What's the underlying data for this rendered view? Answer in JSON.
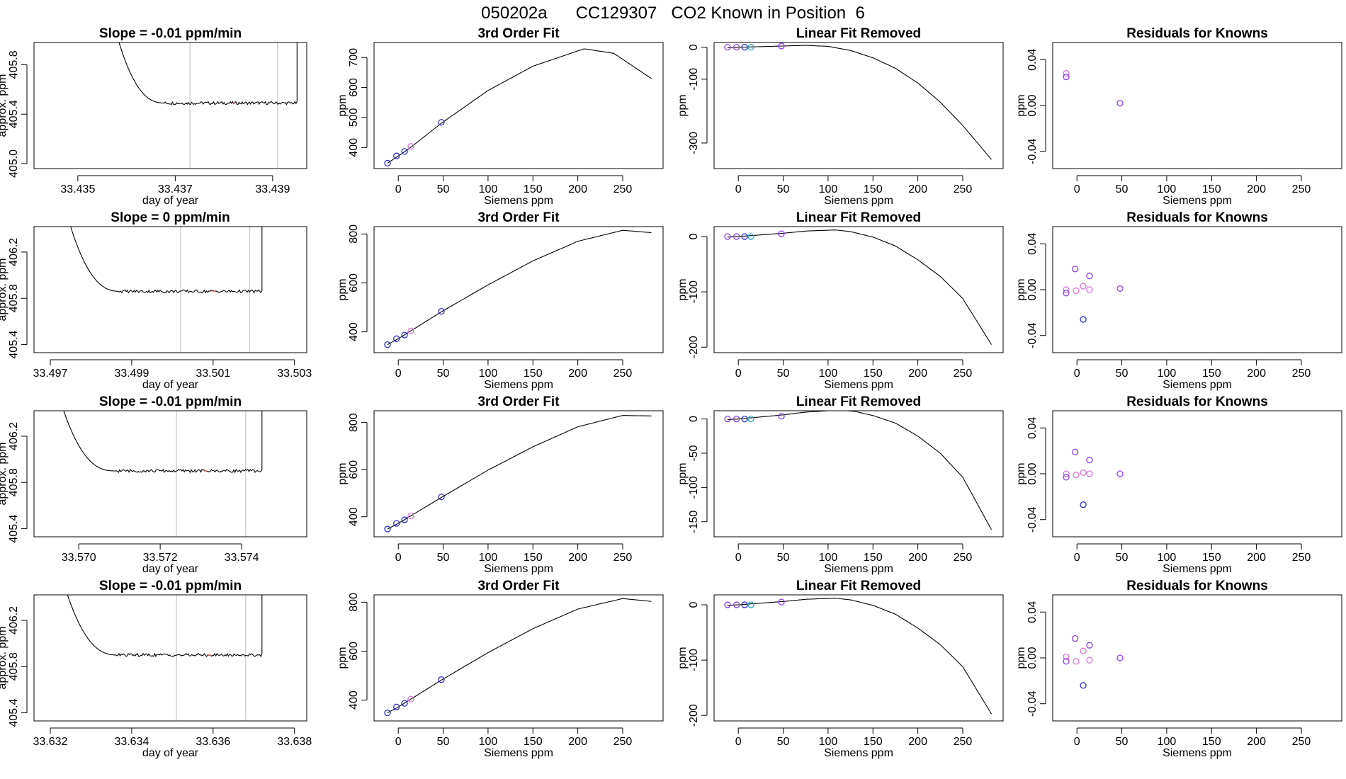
{
  "figure_title": "050202a      CC129307   CO2 Known in Position  6",
  "colors": {
    "curve": "#000000",
    "vline": "#c8c8c8",
    "blue": "#2b2bd6",
    "violet": "#8a3df0",
    "magenta": "#d870d8",
    "cyan": "#2aa6c8",
    "pink": "#e37d7d"
  },
  "chart_data": [
    {
      "type": "line",
      "row": 1,
      "panel": "series",
      "title": "Slope =  -0.01  ppm/min",
      "xlabel": "day of year",
      "ylabel": "approx. ppm",
      "xlim": [
        33.4341,
        33.4397
      ],
      "ylim": [
        404.96,
        405.98
      ],
      "xticks": [
        "33.435",
        "33.437",
        "33.439"
      ],
      "yticks": [
        "405.0",
        "405.4",
        "405.8"
      ],
      "yticks_values": [
        405.0,
        405.4,
        405.8
      ],
      "vlines": [
        33.4373,
        33.4391
      ],
      "plateau": 405.49,
      "x_start": 33.4356,
      "x_end": 33.4395,
      "pink_marks": [
        33.4382
      ]
    },
    {
      "type": "line",
      "row": 1,
      "panel": "fit",
      "title": "3rd Order Fit",
      "xlabel": "Siemens ppm",
      "ylabel": "ppm",
      "xlim": [
        -27,
        295
      ],
      "ylim": [
        330,
        750
      ],
      "xticks": [
        "0",
        "50",
        "100",
        "150",
        "200",
        "250"
      ],
      "yticks": [
        "400",
        "500",
        "600",
        "700"
      ],
      "curve": [
        [
          -12,
          348
        ],
        [
          0,
          372
        ],
        [
          7,
          386
        ],
        [
          14,
          401
        ],
        [
          48,
          481
        ],
        [
          100,
          590
        ],
        [
          150,
          671
        ],
        [
          207,
          729
        ],
        [
          240,
          714
        ],
        [
          283,
          628
        ]
      ],
      "points": [
        {
          "x": -12,
          "y": 348,
          "c": "blue"
        },
        {
          "x": -2,
          "y": 372,
          "c": "blue"
        },
        {
          "x": 7,
          "y": 387,
          "c": "blue"
        },
        {
          "x": 14,
          "y": 404,
          "c": "magenta"
        },
        {
          "x": 48,
          "y": 484,
          "c": "blue"
        }
      ]
    },
    {
      "type": "line",
      "row": 1,
      "panel": "removed",
      "title": "Linear Fit Removed",
      "xlabel": "Siemens ppm",
      "ylabel": "ppm",
      "xlim": [
        -27,
        295
      ],
      "ylim": [
        -380,
        15
      ],
      "xticks": [
        "0",
        "50",
        "100",
        "150",
        "200",
        "250"
      ],
      "yticks": [
        "0",
        "-100",
        "-300"
      ],
      "curve": [
        [
          -12,
          -1
        ],
        [
          0,
          0
        ],
        [
          25,
          2
        ],
        [
          50,
          4
        ],
        [
          75,
          6
        ],
        [
          100,
          3
        ],
        [
          125,
          -10
        ],
        [
          150,
          -33
        ],
        [
          175,
          -66
        ],
        [
          200,
          -112
        ],
        [
          225,
          -172
        ],
        [
          250,
          -245
        ],
        [
          283,
          -355
        ]
      ],
      "points": [
        {
          "x": -12,
          "y": 0,
          "c": "violet"
        },
        {
          "x": -2,
          "y": 0,
          "c": "violet"
        },
        {
          "x": 7,
          "y": 0,
          "c": "blue"
        },
        {
          "x": 14,
          "y": 0,
          "c": "cyan"
        },
        {
          "x": 48,
          "y": 4,
          "c": "violet"
        }
      ]
    },
    {
      "type": "scatter",
      "row": 1,
      "panel": "resid",
      "title": "Residuals for Knowns",
      "xlabel": "Siemens ppm",
      "ylabel": "ppm",
      "xlim": [
        -27,
        295
      ],
      "ylim": [
        -0.055,
        0.055
      ],
      "xticks": [
        "0",
        "50",
        "100",
        "150",
        "200",
        "250"
      ],
      "yticks": [
        "-0.04",
        "0.00",
        "0.04"
      ],
      "points": [
        {
          "x": -12,
          "y": 0.028,
          "c": "magenta"
        },
        {
          "x": -12,
          "y": 0.025,
          "c": "violet"
        },
        {
          "x": 48,
          "y": 0.002,
          "c": "violet"
        }
      ]
    },
    {
      "type": "line",
      "row": 2,
      "panel": "series",
      "title": "Slope =  0  ppm/min",
      "xlabel": "day of year",
      "ylabel": "approx. ppm",
      "xlim": [
        33.4966,
        33.5033
      ],
      "ylim": [
        405.33,
        406.42
      ],
      "xticks": [
        "33.497",
        "33.499",
        "33.501",
        "33.503"
      ],
      "yticks": [
        "405.4",
        "405.8",
        "406.2"
      ],
      "yticks_values": [
        405.4,
        405.8,
        406.2
      ],
      "vlines": [
        33.5002,
        33.5019
      ],
      "plateau": 405.86,
      "x_start": 33.4972,
      "x_end": 33.5022,
      "pink_marks": [
        33.501
      ]
    },
    {
      "type": "line",
      "row": 2,
      "panel": "fit",
      "title": "3rd Order Fit",
      "xlabel": "Siemens ppm",
      "ylabel": "ppm",
      "xlim": [
        -27,
        295
      ],
      "ylim": [
        315,
        830
      ],
      "xticks": [
        "0",
        "50",
        "100",
        "150",
        "200",
        "250"
      ],
      "yticks": [
        "400",
        "600",
        "800"
      ],
      "curve": [
        [
          -12,
          348
        ],
        [
          0,
          372
        ],
        [
          14,
          404
        ],
        [
          48,
          482
        ],
        [
          100,
          592
        ],
        [
          150,
          690
        ],
        [
          200,
          770
        ],
        [
          250,
          815
        ],
        [
          283,
          805
        ]
      ],
      "points": [
        {
          "x": -12,
          "y": 348,
          "c": "blue"
        },
        {
          "x": -2,
          "y": 372,
          "c": "blue"
        },
        {
          "x": 7,
          "y": 387,
          "c": "blue"
        },
        {
          "x": 14,
          "y": 404,
          "c": "magenta"
        },
        {
          "x": 48,
          "y": 484,
          "c": "blue"
        }
      ]
    },
    {
      "type": "line",
      "row": 2,
      "panel": "removed",
      "title": "Linear Fit Removed",
      "xlabel": "Siemens ppm",
      "ylabel": "ppm",
      "xlim": [
        -27,
        295
      ],
      "ylim": [
        -210,
        18
      ],
      "xticks": [
        "0",
        "50",
        "100",
        "150",
        "200",
        "250"
      ],
      "yticks": [
        "0",
        "-100",
        "-200"
      ],
      "curve": [
        [
          -12,
          -1
        ],
        [
          0,
          0
        ],
        [
          25,
          3
        ],
        [
          50,
          6
        ],
        [
          75,
          10
        ],
        [
          108,
          12
        ],
        [
          125,
          9
        ],
        [
          150,
          -1
        ],
        [
          175,
          -17
        ],
        [
          200,
          -42
        ],
        [
          225,
          -72
        ],
        [
          250,
          -112
        ],
        [
          283,
          -198
        ]
      ],
      "points": [
        {
          "x": -12,
          "y": 0,
          "c": "violet"
        },
        {
          "x": -2,
          "y": 0,
          "c": "violet"
        },
        {
          "x": 7,
          "y": 0,
          "c": "blue"
        },
        {
          "x": 14,
          "y": 0,
          "c": "cyan"
        },
        {
          "x": 48,
          "y": 5,
          "c": "violet"
        }
      ]
    },
    {
      "type": "scatter",
      "row": 2,
      "panel": "resid",
      "title": "Residuals for Knowns",
      "xlabel": "Siemens ppm",
      "ylabel": "ppm",
      "xlim": [
        -27,
        295
      ],
      "ylim": [
        -0.055,
        0.055
      ],
      "xticks": [
        "0",
        "50",
        "100",
        "150",
        "200",
        "250"
      ],
      "yticks": [
        "-0.04",
        "0.00",
        "0.04"
      ],
      "points": [
        {
          "x": -12,
          "y": 0.0,
          "c": "magenta"
        },
        {
          "x": -12,
          "y": -0.003,
          "c": "violet"
        },
        {
          "x": -2,
          "y": 0.018,
          "c": "violet"
        },
        {
          "x": -1,
          "y": -0.001,
          "c": "magenta"
        },
        {
          "x": 7,
          "y": 0.003,
          "c": "magenta"
        },
        {
          "x": 7,
          "y": -0.026,
          "c": "blue"
        },
        {
          "x": 14,
          "y": 0.012,
          "c": "violet"
        },
        {
          "x": 14,
          "y": 0.0,
          "c": "magenta"
        },
        {
          "x": 48,
          "y": 0.001,
          "c": "violet"
        }
      ]
    },
    {
      "type": "line",
      "row": 3,
      "panel": "series",
      "title": "Slope =  -0.01  ppm/min",
      "xlabel": "day of year",
      "ylabel": "approx. ppm",
      "xlim": [
        33.5689,
        33.5756
      ],
      "ylim": [
        405.33,
        406.42
      ],
      "xticks": [
        "33.570",
        "33.572",
        "33.574"
      ],
      "yticks": [
        "405.4",
        "405.8",
        "406.2"
      ],
      "yticks_values": [
        405.4,
        405.8,
        406.2
      ],
      "vlines": [
        33.5724,
        33.5741
      ],
      "plateau": 405.9,
      "x_start": 33.5693,
      "x_end": 33.5745,
      "pink_marks": [
        33.5731
      ]
    },
    {
      "type": "line",
      "row": 3,
      "panel": "fit",
      "title": "3rd Order Fit",
      "xlabel": "Siemens ppm",
      "ylabel": "ppm",
      "xlim": [
        -27,
        295
      ],
      "ylim": [
        315,
        850
      ],
      "xticks": [
        "0",
        "50",
        "100",
        "150",
        "200",
        "250"
      ],
      "yticks": [
        "400",
        "600",
        "800"
      ],
      "curve": [
        [
          -12,
          348
        ],
        [
          0,
          372
        ],
        [
          14,
          404
        ],
        [
          48,
          482
        ],
        [
          100,
          598
        ],
        [
          150,
          697
        ],
        [
          200,
          782
        ],
        [
          250,
          830
        ],
        [
          283,
          828
        ]
      ],
      "points": [
        {
          "x": -12,
          "y": 348,
          "c": "blue"
        },
        {
          "x": -2,
          "y": 372,
          "c": "blue"
        },
        {
          "x": 7,
          "y": 387,
          "c": "blue"
        },
        {
          "x": 14,
          "y": 404,
          "c": "magenta"
        },
        {
          "x": 48,
          "y": 484,
          "c": "blue"
        }
      ]
    },
    {
      "type": "line",
      "row": 3,
      "panel": "removed",
      "title": "Linear Fit Removed",
      "xlabel": "Siemens ppm",
      "ylabel": "ppm",
      "xlim": [
        -27,
        295
      ],
      "ylim": [
        -172,
        12
      ],
      "xticks": [
        "0",
        "50",
        "100",
        "150",
        "200",
        "250"
      ],
      "yticks": [
        "0",
        "-50",
        "-100",
        "-150"
      ],
      "curve": [
        [
          -12,
          -1
        ],
        [
          0,
          0
        ],
        [
          25,
          3
        ],
        [
          50,
          6
        ],
        [
          75,
          10
        ],
        [
          112,
          13
        ],
        [
          130,
          11
        ],
        [
          150,
          5
        ],
        [
          175,
          -6
        ],
        [
          200,
          -25
        ],
        [
          225,
          -50
        ],
        [
          250,
          -85
        ],
        [
          283,
          -164
        ]
      ],
      "points": [
        {
          "x": -12,
          "y": 0,
          "c": "violet"
        },
        {
          "x": -2,
          "y": 0,
          "c": "violet"
        },
        {
          "x": 7,
          "y": 0,
          "c": "blue"
        },
        {
          "x": 14,
          "y": 0,
          "c": "cyan"
        },
        {
          "x": 48,
          "y": 4,
          "c": "violet"
        }
      ]
    },
    {
      "type": "scatter",
      "row": 3,
      "panel": "resid",
      "title": "Residuals for Knowns",
      "xlabel": "Siemens ppm",
      "ylabel": "ppm",
      "xlim": [
        -27,
        295
      ],
      "ylim": [
        -0.055,
        0.055
      ],
      "xticks": [
        "0",
        "50",
        "100",
        "150",
        "200",
        "250"
      ],
      "yticks": [
        "-0.04",
        "0.00",
        "0.04"
      ],
      "points": [
        {
          "x": -12,
          "y": 0.0,
          "c": "magenta"
        },
        {
          "x": -12,
          "y": -0.003,
          "c": "violet"
        },
        {
          "x": -2,
          "y": 0.019,
          "c": "violet"
        },
        {
          "x": -1,
          "y": -0.001,
          "c": "magenta"
        },
        {
          "x": 7,
          "y": 0.001,
          "c": "magenta"
        },
        {
          "x": 7,
          "y": -0.027,
          "c": "blue"
        },
        {
          "x": 14,
          "y": 0.012,
          "c": "violet"
        },
        {
          "x": 14,
          "y": 0.0,
          "c": "magenta"
        },
        {
          "x": 48,
          "y": 0.0,
          "c": "violet"
        }
      ]
    },
    {
      "type": "line",
      "row": 4,
      "panel": "series",
      "title": "Slope =  -0.01  ppm/min",
      "xlabel": "day of year",
      "ylabel": "approx. ppm",
      "xlim": [
        33.6316,
        33.6383
      ],
      "ylim": [
        405.33,
        406.42
      ],
      "xticks": [
        "33.632",
        "33.634",
        "33.636",
        "33.638"
      ],
      "yticks": [
        "405.4",
        "405.8",
        "406.2"
      ],
      "yticks_values": [
        405.4,
        405.8,
        406.2
      ],
      "vlines": [
        33.6351,
        33.6368
      ],
      "plateau": 405.9,
      "x_start": 33.6321,
      "x_end": 33.6372,
      "pink_marks": [
        33.6359
      ]
    },
    {
      "type": "line",
      "row": 4,
      "panel": "fit",
      "title": "3rd Order Fit",
      "xlabel": "Siemens ppm",
      "ylabel": "ppm",
      "xlim": [
        -27,
        295
      ],
      "ylim": [
        315,
        830
      ],
      "xticks": [
        "0",
        "50",
        "100",
        "150",
        "200",
        "250"
      ],
      "yticks": [
        "400",
        "600",
        "800"
      ],
      "curve": [
        [
          -12,
          348
        ],
        [
          0,
          372
        ],
        [
          14,
          404
        ],
        [
          48,
          482
        ],
        [
          100,
          594
        ],
        [
          150,
          692
        ],
        [
          200,
          772
        ],
        [
          250,
          815
        ],
        [
          283,
          803
        ]
      ],
      "points": [
        {
          "x": -12,
          "y": 348,
          "c": "blue"
        },
        {
          "x": -2,
          "y": 372,
          "c": "blue"
        },
        {
          "x": 7,
          "y": 387,
          "c": "blue"
        },
        {
          "x": 14,
          "y": 404,
          "c": "magenta"
        },
        {
          "x": 48,
          "y": 484,
          "c": "blue"
        }
      ]
    },
    {
      "type": "line",
      "row": 4,
      "panel": "removed",
      "title": "Linear Fit Removed",
      "xlabel": "Siemens ppm",
      "ylabel": "ppm",
      "xlim": [
        -27,
        295
      ],
      "ylim": [
        -210,
        18
      ],
      "xticks": [
        "0",
        "50",
        "100",
        "150",
        "200",
        "250"
      ],
      "yticks": [
        "0",
        "-100",
        "-200"
      ],
      "curve": [
        [
          -12,
          -1
        ],
        [
          0,
          0
        ],
        [
          25,
          3
        ],
        [
          50,
          6
        ],
        [
          75,
          10
        ],
        [
          108,
          12
        ],
        [
          125,
          9
        ],
        [
          150,
          -1
        ],
        [
          175,
          -17
        ],
        [
          200,
          -42
        ],
        [
          225,
          -72
        ],
        [
          250,
          -112
        ],
        [
          283,
          -200
        ]
      ],
      "points": [
        {
          "x": -12,
          "y": 0,
          "c": "violet"
        },
        {
          "x": -2,
          "y": 0,
          "c": "violet"
        },
        {
          "x": 7,
          "y": 0,
          "c": "blue"
        },
        {
          "x": 14,
          "y": 0,
          "c": "cyan"
        },
        {
          "x": 48,
          "y": 5,
          "c": "violet"
        }
      ]
    },
    {
      "type": "scatter",
      "row": 4,
      "panel": "resid",
      "title": "Residuals for Knowns",
      "xlabel": "Siemens ppm",
      "ylabel": "ppm",
      "xlim": [
        -27,
        295
      ],
      "ylim": [
        -0.055,
        0.055
      ],
      "xticks": [
        "0",
        "50",
        "100",
        "150",
        "200",
        "250"
      ],
      "yticks": [
        "-0.04",
        "0.00",
        "0.04"
      ],
      "points": [
        {
          "x": -12,
          "y": 0.001,
          "c": "magenta"
        },
        {
          "x": -12,
          "y": -0.003,
          "c": "violet"
        },
        {
          "x": -2,
          "y": 0.017,
          "c": "violet"
        },
        {
          "x": -1,
          "y": -0.003,
          "c": "magenta"
        },
        {
          "x": 7,
          "y": 0.006,
          "c": "magenta"
        },
        {
          "x": 7,
          "y": -0.024,
          "c": "blue"
        },
        {
          "x": 14,
          "y": 0.011,
          "c": "violet"
        },
        {
          "x": 14,
          "y": -0.002,
          "c": "magenta"
        },
        {
          "x": 48,
          "y": 0.0,
          "c": "violet"
        }
      ]
    }
  ]
}
